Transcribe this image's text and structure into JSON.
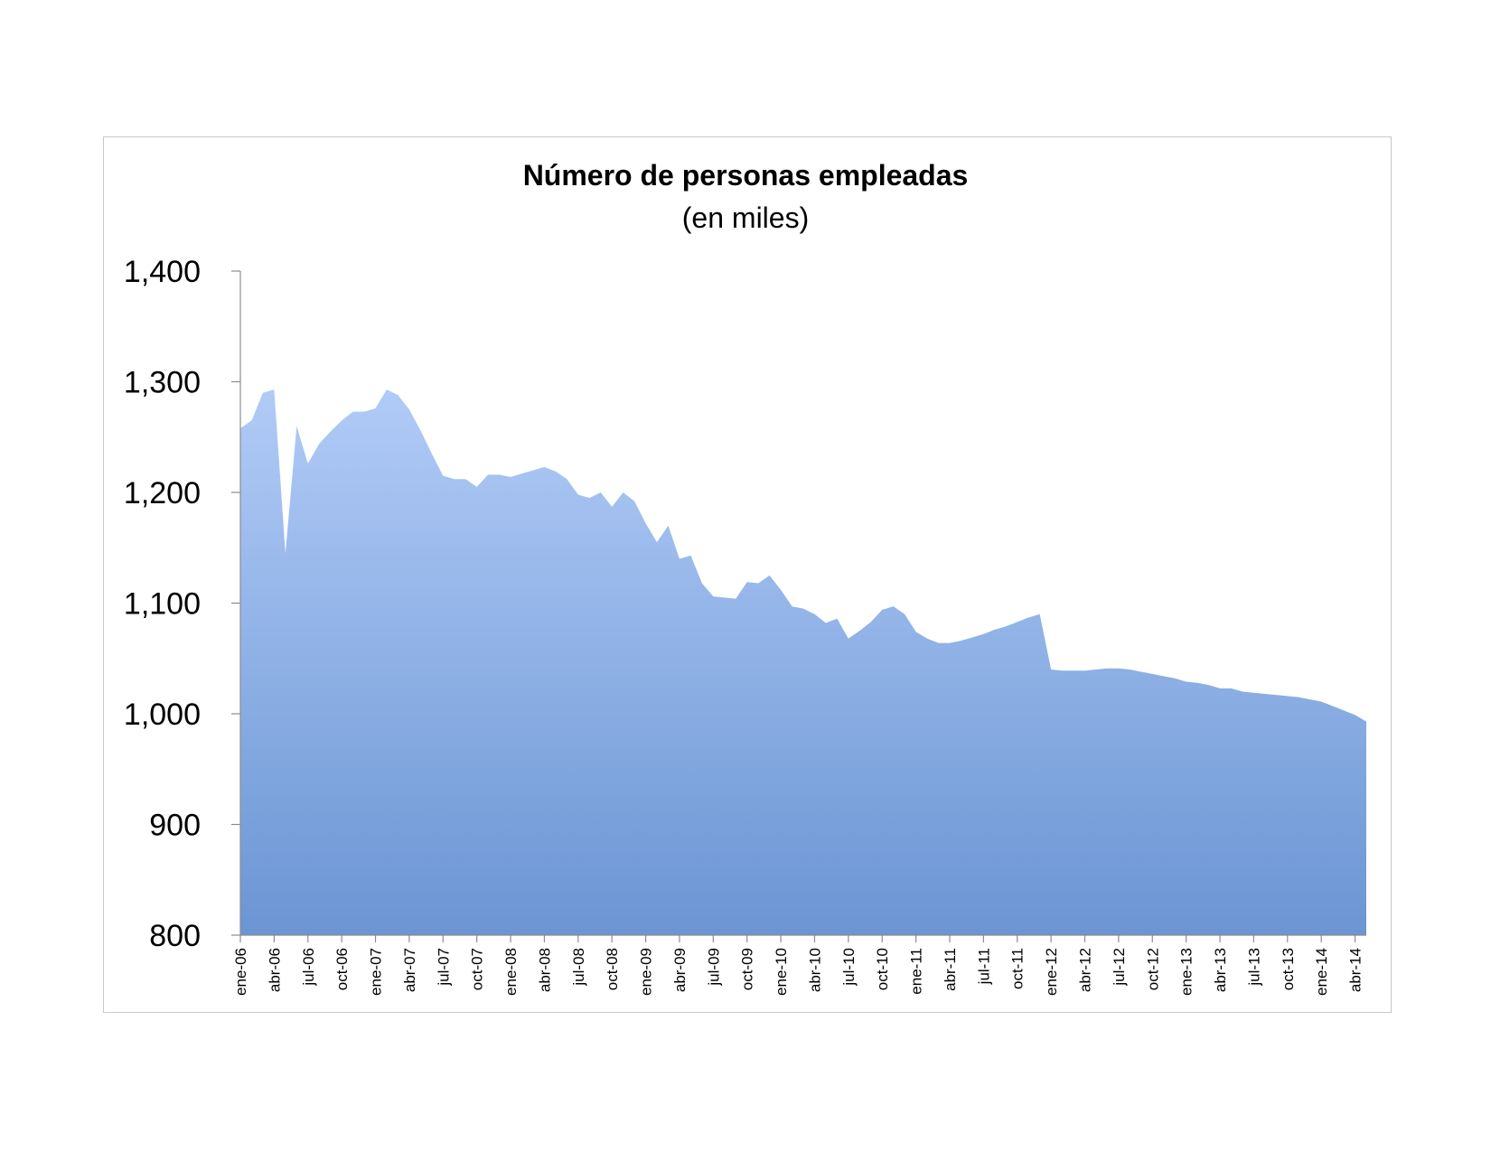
{
  "chart_data": {
    "type": "area",
    "title": "Número de personas empleadas",
    "subtitle": "(en miles)",
    "xlabel": "",
    "ylabel": "",
    "ylim": [
      800,
      1400
    ],
    "yticks": [
      800,
      900,
      1000,
      1100,
      1200,
      1300,
      1400
    ],
    "ytick_labels": [
      "800",
      "900",
      "1,000",
      "1,100",
      "1,200",
      "1,300",
      "1,400"
    ],
    "xtick_labels": [
      "ene-06",
      "abr-06",
      "jul-06",
      "oct-06",
      "ene-07",
      "abr-07",
      "jul-07",
      "oct-07",
      "ene-08",
      "abr-08",
      "jul-08",
      "oct-08",
      "ene-09",
      "abr-09",
      "jul-09",
      "oct-09",
      "ene-10",
      "abr-10",
      "jul-10",
      "oct-10",
      "ene-11",
      "abr-11",
      "jul-11",
      "oct-11",
      "ene-12",
      "abr-12",
      "jul-12",
      "oct-12",
      "ene-13",
      "abr-13",
      "jul-13",
      "oct-13",
      "ene-14",
      "abr-14"
    ],
    "grid": false,
    "legend": "none",
    "fill_top_color": "#b1cbf7",
    "fill_bottom_color": "#6b95d3",
    "series": [
      {
        "values": [
          1258,
          1265,
          1290,
          1293,
          1145,
          1260,
          1226,
          1244,
          1255,
          1265,
          1273,
          1273,
          1276,
          1293,
          1288,
          1275,
          1256,
          1235,
          1215,
          1212,
          1212,
          1205,
          1216,
          1216,
          1214,
          1217,
          1220,
          1223,
          1219,
          1212,
          1198,
          1195,
          1200,
          1187,
          1200,
          1192,
          1172,
          1155,
          1170,
          1140,
          1143,
          1118,
          1106,
          1105,
          1104,
          1119,
          1118,
          1125,
          1112,
          1097,
          1095,
          1090,
          1082,
          1086,
          1068,
          1075,
          1083,
          1094,
          1097,
          1090,
          1074,
          1068,
          1064,
          1064,
          1066,
          1069,
          1072,
          1076,
          1079,
          1083,
          1087,
          1090,
          1040,
          1039,
          1039,
          1039,
          1040,
          1041,
          1041,
          1040,
          1038,
          1036,
          1034,
          1032,
          1029,
          1028,
          1026,
          1023,
          1023,
          1020,
          1019,
          1018,
          1017,
          1016,
          1015,
          1013,
          1011,
          1007,
          1003,
          999,
          993
        ]
      }
    ]
  }
}
